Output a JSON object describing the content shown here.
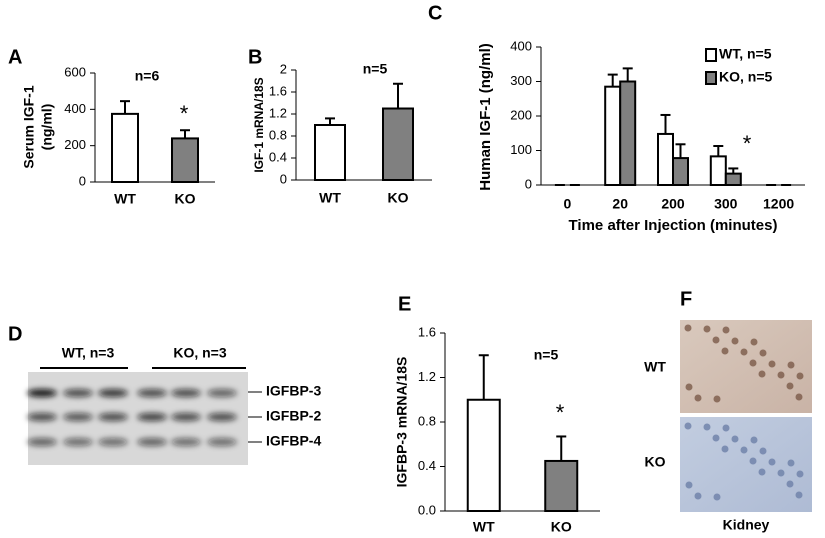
{
  "chart_data": [
    {
      "type": "bar",
      "panel_label": "A",
      "y_label": [
        "Serum IGF-1",
        "(ng/ml)"
      ],
      "annotations": [
        "n=6",
        "*"
      ],
      "categories": [
        "WT",
        "KO"
      ],
      "values": [
        375,
        240
      ],
      "errors": [
        70,
        45
      ],
      "colors": [
        "#ffffff",
        "#808080"
      ],
      "ylim": [
        0,
        600
      ],
      "yticks": [
        0,
        200,
        400,
        600
      ]
    },
    {
      "type": "bar",
      "panel_label": "B",
      "y_label": [
        "IGF-1 mRNA/18S"
      ],
      "annotations": [
        "n=5"
      ],
      "categories": [
        "WT",
        "KO"
      ],
      "values": [
        1.0,
        1.3
      ],
      "errors": [
        0.12,
        0.45
      ],
      "colors": [
        "#ffffff",
        "#808080"
      ],
      "ylim": [
        0,
        2
      ],
      "yticks": [
        0,
        0.4,
        0.8,
        1.2,
        1.6,
        2
      ]
    },
    {
      "type": "bar",
      "panel_label": "C",
      "y_label": [
        "Human IGF-1 (ng/ml)"
      ],
      "x_label": "Time after Injection (minutes)",
      "annotations": [
        "*"
      ],
      "categories": [
        "0",
        "20",
        "200",
        "300",
        "1200"
      ],
      "series": [
        {
          "name": "WT, n=5",
          "color": "#ffffff",
          "values": [
            0,
            285,
            148,
            83,
            0
          ],
          "errors": [
            0,
            35,
            55,
            30,
            0
          ]
        },
        {
          "name": "KO, n=5",
          "color": "#808080",
          "values": [
            0,
            300,
            78,
            33,
            0
          ],
          "errors": [
            0,
            38,
            40,
            15,
            0
          ]
        }
      ],
      "ylim": [
        0,
        400
      ],
      "yticks": [
        0,
        100,
        200,
        300,
        400
      ],
      "legend": "upper right"
    },
    {
      "type": "bar",
      "panel_label": "E",
      "y_label": [
        "IGFBP-3 mRNA/18S"
      ],
      "annotations": [
        "n=5",
        "*"
      ],
      "categories": [
        "WT",
        "KO"
      ],
      "values": [
        1.0,
        0.45
      ],
      "errors": [
        0.4,
        0.22
      ],
      "colors": [
        "#ffffff",
        "#808080"
      ],
      "ylim": [
        0,
        1.6
      ],
      "yticks": [
        {
          "value": 0,
          "label": "0.0"
        },
        0.4,
        0.8,
        1.2,
        1.6
      ]
    }
  ],
  "blot": {
    "panel_label": "D",
    "groups": [
      "WT, n=3",
      "KO, n=3"
    ],
    "bands": [
      "IGFBP-3",
      "IGFBP-2",
      "IGFBP-4"
    ]
  },
  "histology": {
    "panel_label": "F",
    "rows": [
      "WT",
      "KO"
    ],
    "caption": "Kidney"
  }
}
